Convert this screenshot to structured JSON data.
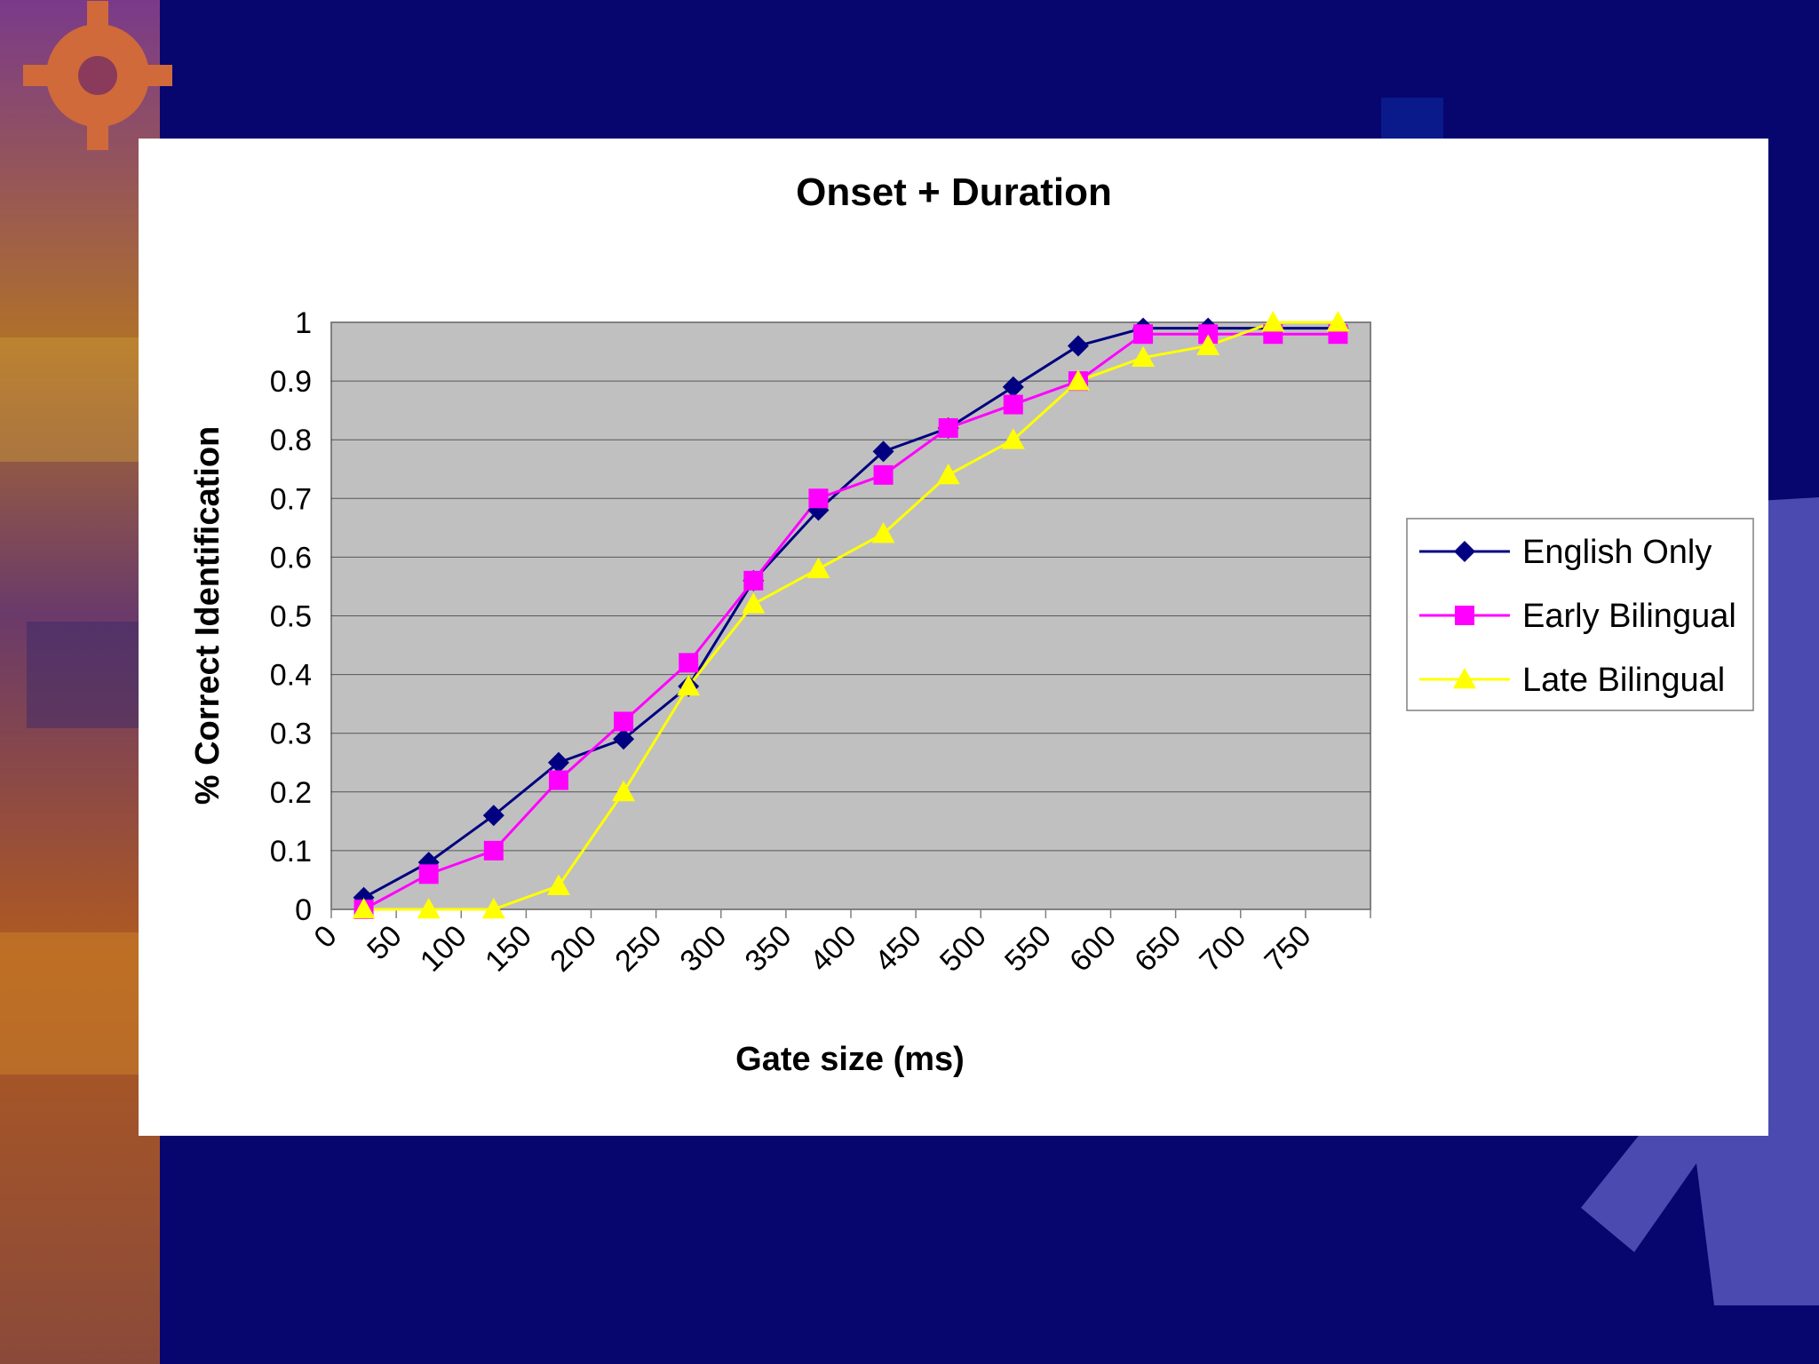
{
  "colors": {
    "slide_background": "#06066e",
    "plot_area": "#c0c0c0",
    "english_only": "#000080",
    "early_bilingual": "#ff00ff",
    "late_bilingual": "#ffff00"
  },
  "chart_data": {
    "type": "line",
    "title": "Onset + Duration",
    "xlabel": "Gate size (ms)",
    "ylabel": "% Correct Identification",
    "categories": [
      "0",
      "50",
      "100",
      "150",
      "200",
      "250",
      "300",
      "350",
      "400",
      "450",
      "500",
      "550",
      "600",
      "650",
      "700",
      "750"
    ],
    "y_ticks": [
      "0",
      "0.1",
      "0.2",
      "0.3",
      "0.4",
      "0.5",
      "0.6",
      "0.7",
      "0.8",
      "0.9",
      "1"
    ],
    "ylim": [
      0,
      1
    ],
    "grid": "horizontal",
    "legend_position": "right",
    "series": [
      {
        "name": "English Only",
        "marker": "diamond",
        "color": "#000080",
        "values": [
          0.02,
          0.08,
          0.16,
          0.25,
          0.29,
          0.38,
          0.56,
          0.68,
          0.78,
          0.82,
          0.89,
          0.96,
          0.99,
          0.99,
          0.99,
          0.99
        ]
      },
      {
        "name": "Early Bilingual",
        "marker": "square",
        "color": "#ff00ff",
        "values": [
          0.0,
          0.06,
          0.1,
          0.22,
          0.32,
          0.42,
          0.56,
          0.7,
          0.74,
          0.82,
          0.86,
          0.9,
          0.98,
          0.98,
          0.98,
          0.98
        ]
      },
      {
        "name": "Late Bilingual",
        "marker": "triangle",
        "color": "#ffff00",
        "values": [
          0.0,
          0.0,
          0.0,
          0.04,
          0.2,
          0.38,
          0.52,
          0.58,
          0.64,
          0.74,
          0.8,
          0.9,
          0.94,
          0.96,
          1.0,
          1.0
        ]
      }
    ]
  }
}
